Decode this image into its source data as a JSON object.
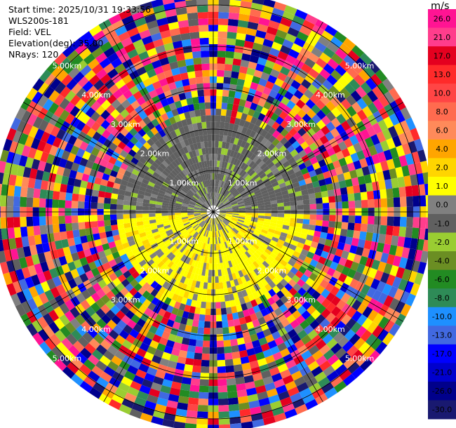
{
  "info": {
    "start_time": "Start time: 2025/10/31 19:33:56",
    "device": "WLS200s-181",
    "field": "Field: VEL",
    "elevation": "Elevation(deg): 35.00",
    "nrays": "NRays: 120"
  },
  "chart_data": {
    "type": "heatmap",
    "projection": "polar-ppi",
    "field": "VEL",
    "elevation_deg": 35.0,
    "n_rays": 120,
    "range_rings_km": [
      1.0,
      2.0,
      3.0,
      4.0,
      5.0
    ],
    "range_ring_labels": [
      "1.00km",
      "2.00km",
      "3.00km",
      "4.00km",
      "5.00km"
    ],
    "max_range_km": 5.3,
    "colorbar": {
      "unit": "m/s",
      "ticks": [
        "26.0",
        "21.0",
        "17.0",
        "13.0",
        "10.0",
        "8.0",
        "6.0",
        "4.0",
        "2.0",
        "1.0",
        "0.0",
        "-1.0",
        "-2.0",
        "-4.0",
        "-6.0",
        "-8.0",
        "-10.0",
        "-13.0",
        "-17.0",
        "-21.0",
        "-26.0",
        "-30.0"
      ],
      "colors": [
        "#ff1493",
        "#ff3d8c",
        "#e4001f",
        "#ff2a2a",
        "#ff4545",
        "#ff6b4f",
        "#ff8a5a",
        "#ffa500",
        "#ffd500",
        "#ffff00",
        "#808080",
        "#606060",
        "#9acd32",
        "#6b8e23",
        "#228b22",
        "#2e8b57",
        "#1e90ff",
        "#4169e1",
        "#0000ff",
        "#0000cd",
        "#00008b",
        "#191970"
      ]
    },
    "regions": [
      {
        "name": "near-field north (weak negative)",
        "range_km": [
          0.2,
          2.2
        ],
        "azimuth_deg": [
          -85,
          85
        ],
        "values": [
          -1.0,
          -2.0,
          0.0
        ]
      },
      {
        "name": "near-field south (weak positive)",
        "range_km": [
          0.2,
          2.4
        ],
        "azimuth_deg": [
          95,
          265
        ],
        "values": [
          1.0,
          2.0,
          0.0
        ]
      },
      {
        "name": "far-field (noise, aliased)",
        "range_km": [
          2.3,
          5.3
        ],
        "azimuth_deg": [
          0,
          360
        ],
        "values": "mixed"
      }
    ]
  }
}
